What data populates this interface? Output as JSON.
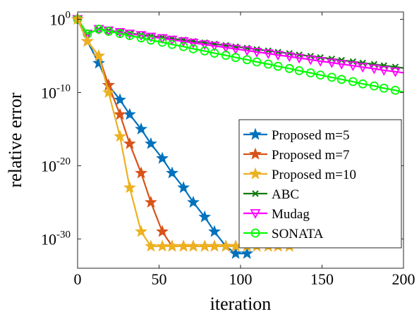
{
  "chart_data": {
    "type": "line",
    "title": "",
    "xlabel": "iteration",
    "ylabel": "relative error",
    "xlim": [
      0,
      200
    ],
    "ylim": [
      1e-34,
      10
    ],
    "yscale": "log",
    "xticks": [
      0,
      50,
      100,
      150,
      200
    ],
    "yticks": [
      {
        "value": 1,
        "base": "10",
        "exp": "0"
      },
      {
        "value": 1e-10,
        "base": "10",
        "exp": "-10"
      },
      {
        "value": 1e-20,
        "base": "10",
        "exp": "-20"
      },
      {
        "value": 1e-30,
        "base": "10",
        "exp": "-30"
      }
    ],
    "grid": false,
    "legend_position": "bottom-right",
    "series": [
      {
        "name": "Proposed m=5",
        "color": "#0072BD",
        "marker": "star",
        "x": [
          0,
          6,
          13,
          19,
          26,
          32,
          39,
          45,
          52,
          58,
          65,
          71,
          78,
          84,
          91,
          97,
          104
        ],
        "y": [
          1,
          0.001,
          1e-06,
          1e-09,
          1e-11,
          1e-13,
          1e-15,
          1e-17,
          1e-19,
          1e-21,
          1e-23,
          1e-25,
          1e-27,
          1e-29,
          1e-31,
          1e-32,
          1e-32
        ]
      },
      {
        "name": "Proposed m=7",
        "color": "#D95319",
        "marker": "star",
        "x": [
          0,
          6,
          13,
          19,
          26,
          32,
          39,
          45,
          52,
          58,
          65,
          71,
          78,
          84,
          91,
          97,
          104,
          110,
          117,
          123,
          130
        ],
        "y": [
          1,
          0.001,
          1e-05,
          1e-09,
          1e-13,
          1e-17,
          1e-21,
          1e-25,
          1e-29,
          1e-31,
          1e-31,
          1e-31,
          1e-31,
          1e-31,
          1e-31,
          1e-31,
          1e-31,
          1e-31,
          1e-31,
          1e-31,
          1e-31
        ]
      },
      {
        "name": "Proposed m=10",
        "color": "#EDB120",
        "marker": "star",
        "x": [
          0,
          6,
          13,
          19,
          26,
          32,
          39,
          45,
          52,
          58,
          65,
          71,
          78,
          84,
          91,
          97,
          104,
          110,
          117,
          123,
          130
        ],
        "y": [
          1,
          0.001,
          1e-05,
          1e-10,
          1e-16,
          1e-23,
          1e-29,
          1e-31,
          1e-31,
          1e-31,
          1e-31,
          1e-31,
          1e-31,
          1e-31,
          1e-31,
          1e-31,
          1e-31,
          1e-31,
          1e-31,
          1e-31,
          1e-31
        ]
      },
      {
        "name": "ABC",
        "color": "#0E7A0E",
        "marker": "x",
        "x": [
          0,
          6,
          13,
          19,
          26,
          32,
          39,
          45,
          52,
          58,
          65,
          71,
          78,
          84,
          91,
          97,
          104,
          110,
          117,
          123,
          130,
          136,
          143,
          149,
          156,
          162,
          169,
          175,
          182,
          188,
          195,
          200
        ],
        "y": [
          1,
          0.01,
          0.045,
          0.029,
          0.019,
          0.012,
          0.008,
          0.0055,
          0.0035,
          0.0023,
          0.0015,
          0.001,
          0.00065,
          0.00042,
          0.00028,
          0.00018,
          0.00012,
          7.8e-05,
          5.1e-05,
          3.3e-05,
          2.2e-05,
          1.4e-05,
          9.3e-06,
          6.1e-06,
          4e-06,
          2.6e-06,
          1.7e-06,
          1.1e-06,
          7.3e-07,
          4.8e-07,
          3.1e-07,
          2.2e-07
        ]
      },
      {
        "name": "Mudag",
        "color": "#FF00FF",
        "marker": "triangle-down",
        "x": [
          0,
          6,
          13,
          19,
          26,
          32,
          39,
          45,
          52,
          58,
          65,
          71,
          78,
          84,
          91,
          97,
          104,
          110,
          117,
          123,
          130,
          136,
          143,
          149,
          156,
          162,
          169,
          175,
          182,
          188,
          195,
          200
        ],
        "y": [
          1,
          0.01,
          0.045,
          0.028,
          0.017,
          0.0105,
          0.0065,
          0.004,
          0.0025,
          0.00155,
          0.00096,
          0.0006,
          0.00037,
          0.00023,
          0.00014,
          8.8e-05,
          5.5e-05,
          3.4e-05,
          2.1e-05,
          1.3e-05,
          8.1e-06,
          5e-06,
          3.1e-06,
          1.9e-06,
          1.2e-06,
          7.5e-07,
          4.7e-07,
          2.9e-07,
          1.8e-07,
          1.1e-07,
          7e-08,
          5e-08
        ]
      },
      {
        "name": "SONATA",
        "color": "#00FF00",
        "marker": "circle",
        "x": [
          0,
          6,
          13,
          19,
          26,
          32,
          39,
          45,
          52,
          58,
          65,
          71,
          78,
          84,
          91,
          97,
          104,
          110,
          117,
          123,
          130,
          136,
          143,
          149,
          156,
          162,
          169,
          175,
          182,
          188,
          195,
          200
        ],
        "y": [
          1,
          0.01,
          0.045,
          0.023,
          0.0115,
          0.0058,
          0.0029,
          0.00145,
          0.00073,
          0.00037,
          0.000185,
          9.3e-05,
          4.7e-05,
          2.35e-05,
          1.2e-05,
          6e-06,
          3e-06,
          1.5e-06,
          7.6e-07,
          3.8e-07,
          1.9e-07,
          9.6e-08,
          4.8e-08,
          2.4e-08,
          1.2e-08,
          6.1e-09,
          3.1e-09,
          1.5e-09,
          7.8e-10,
          3.9e-10,
          2e-10,
          1.1e-10
        ]
      }
    ]
  }
}
